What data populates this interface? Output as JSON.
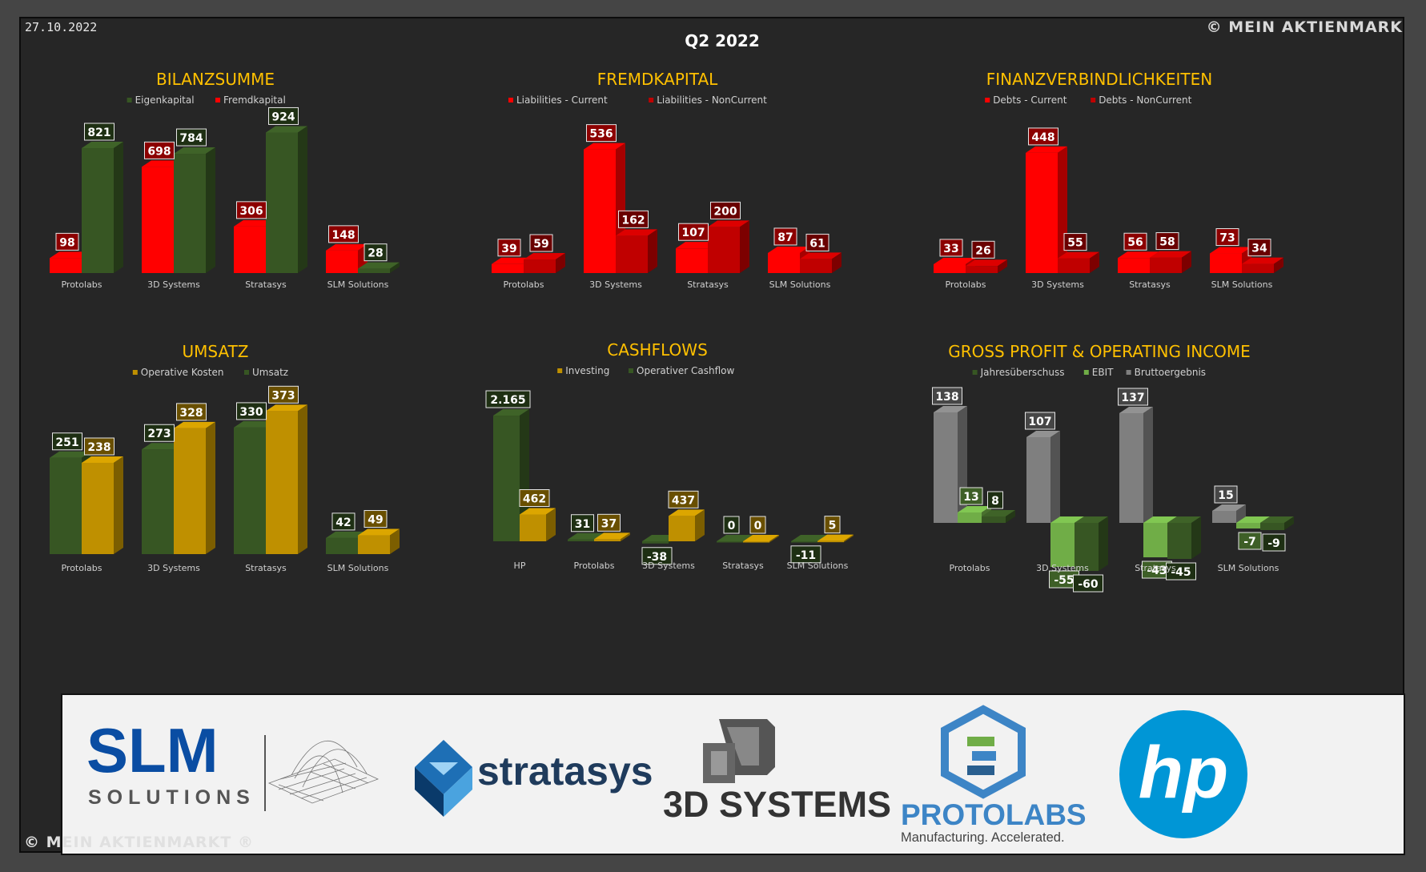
{
  "header": {
    "date": "27.10.2022",
    "period": "Q2 2022",
    "copyright_top": "© MEIN AKTIENMARK",
    "copyright_bottom": "© MEIN AKTIENMARKT ®"
  },
  "colors": {
    "green": "#375623",
    "green_light": "#70ad47",
    "red": "#ff0000",
    "red_dark": "#c00000",
    "gold": "#bf9000",
    "gray": "#7f7f7f",
    "title": "#ffc000"
  },
  "logos": {
    "slm": {
      "main": "SLM",
      "sub": "SOLUTIONS"
    },
    "stratasys": {
      "name": "stratasys"
    },
    "systems3d": {
      "name": "3D SYSTEMS"
    },
    "protolabs": {
      "name": "PROTOLABS",
      "tagline": "Manufacturing. Accelerated."
    },
    "hp": {
      "name": "hp"
    }
  },
  "chart_data": [
    {
      "type": "bar",
      "title": "BILANZSUMME",
      "categories": [
        "Protolabs",
        "3D Systems",
        "Stratasys",
        "SLM Solutions"
      ],
      "series": [
        {
          "name": "Eigenkapital",
          "values": [
            821,
            784,
            924,
            28
          ],
          "color": "#375623"
        },
        {
          "name": "Fremdkapital",
          "values": [
            98,
            698,
            306,
            148
          ],
          "color": "#ff0000"
        }
      ]
    },
    {
      "type": "bar",
      "title": "FREMDKAPITAL",
      "categories": [
        "Protolabs",
        "3D Systems",
        "Stratasys",
        "SLM Solutions"
      ],
      "series": [
        {
          "name": "Liabilities - Current",
          "values": [
            39,
            536,
            107,
            87
          ],
          "color": "#ff0000"
        },
        {
          "name": "Liabilities - NonCurrent",
          "values": [
            59,
            162,
            200,
            61
          ],
          "color": "#c00000"
        }
      ]
    },
    {
      "type": "bar",
      "title": "FINANZVERBINDLICHKEITEN",
      "categories": [
        "Protolabs",
        "3D Systems",
        "Stratasys",
        "SLM Solutions"
      ],
      "series": [
        {
          "name": "Debts - Current",
          "values": [
            33,
            448,
            56,
            73
          ],
          "color": "#ff0000"
        },
        {
          "name": "Debts - NonCurrent",
          "values": [
            26,
            55,
            58,
            34
          ],
          "color": "#c00000"
        }
      ]
    },
    {
      "type": "bar",
      "title": "UMSATZ",
      "categories": [
        "Protolabs",
        "3D Systems",
        "Stratasys",
        "SLM Solutions"
      ],
      "series": [
        {
          "name": "Operative Kosten",
          "values": [
            238,
            328,
            373,
            49
          ],
          "color": "#bf9000"
        },
        {
          "name": "Umsatz",
          "values": [
            251,
            273,
            330,
            42
          ],
          "color": "#375623"
        }
      ]
    },
    {
      "type": "bar",
      "title": "CASHFLOWS",
      "categories": [
        "HP",
        "Protolabs",
        "3D Systems",
        "Stratasys",
        "SLM Solutions"
      ],
      "series": [
        {
          "name": "Investing",
          "values": [
            462,
            37,
            437,
            0,
            5
          ],
          "color": "#bf9000"
        },
        {
          "name": "Operativer Cashflow",
          "values": [
            2165,
            31,
            -38,
            0,
            -11
          ],
          "color": "#375623"
        }
      ]
    },
    {
      "type": "bar",
      "title": "GROSS PROFIT & OPERATING INCOME",
      "categories": [
        "Protolabs",
        "3D Systems",
        "Stratasys",
        "SLM Solutions"
      ],
      "series": [
        {
          "name": "Jahresüberschuss",
          "values": [
            8,
            -60,
            -45,
            -9
          ],
          "color": "#375623"
        },
        {
          "name": "EBIT",
          "values": [
            13,
            -55,
            -43,
            -7
          ],
          "color": "#70ad47"
        },
        {
          "name": "Bruttoergebnis",
          "values": [
            138,
            107,
            137,
            15
          ],
          "color": "#7f7f7f"
        }
      ]
    }
  ]
}
